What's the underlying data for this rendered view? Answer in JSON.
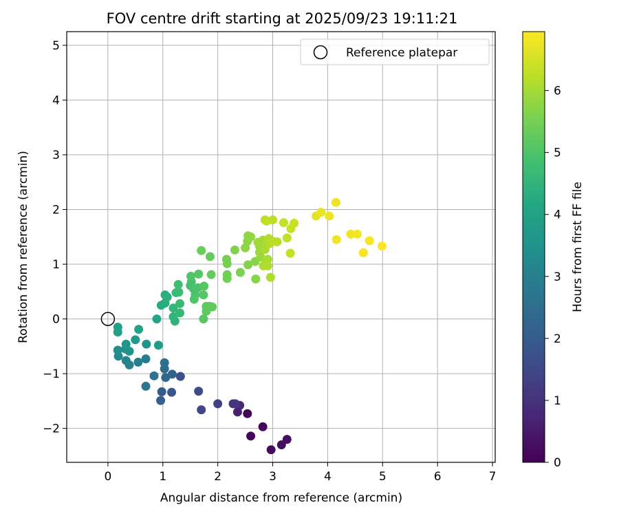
{
  "chart_data": {
    "type": "scatter",
    "title": "FOV centre drift starting at 2025/09/23 19:11:21",
    "xlabel": "Angular distance from reference (arcmin)",
    "ylabel": "Rotation from reference (arcmin)",
    "xlim": [
      -0.75,
      7.05
    ],
    "ylim": [
      -2.62,
      5.25
    ],
    "xticks": [
      0,
      1,
      2,
      3,
      4,
      5,
      6,
      7
    ],
    "yticks": [
      -2,
      -1,
      0,
      1,
      2,
      3,
      4,
      5
    ],
    "xtick_labels": [
      "0",
      "1",
      "2",
      "3",
      "4",
      "5",
      "6",
      "7"
    ],
    "ytick_labels": [
      "−2",
      "−1",
      "0",
      "1",
      "2",
      "3",
      "4",
      "5"
    ],
    "grid": true,
    "legend": {
      "label": "Reference platepar",
      "position": "top-right"
    },
    "reference_point": {
      "x": 0,
      "y": 0
    },
    "colorbar": {
      "label": "Hours from first FF file",
      "colormap": "viridis",
      "range": [
        0,
        6.95
      ],
      "ticks": [
        0,
        1,
        2,
        3,
        4,
        5,
        6
      ],
      "tick_labels": [
        "0",
        "1",
        "2",
        "3",
        "4",
        "5",
        "6"
      ]
    },
    "points": [
      [
        2.54,
        -1.73,
        0.05
      ],
      [
        2.6,
        -2.14,
        0.1
      ],
      [
        2.82,
        -1.97,
        0.15
      ],
      [
        2.97,
        -2.39,
        0.2
      ],
      [
        3.16,
        -2.3,
        0.25
      ],
      [
        3.26,
        -2.2,
        0.3
      ],
      [
        2.36,
        -1.7,
        0.6
      ],
      [
        2.4,
        -1.58,
        0.8
      ],
      [
        2.28,
        -1.55,
        1.0
      ],
      [
        2.32,
        -1.55,
        1.1
      ],
      [
        2.0,
        -1.55,
        1.3
      ],
      [
        1.7,
        -1.66,
        1.45
      ],
      [
        1.65,
        -1.32,
        1.6
      ],
      [
        1.32,
        -1.05,
        1.8
      ],
      [
        1.16,
        -1.34,
        1.9
      ],
      [
        0.98,
        -1.33,
        2.0
      ],
      [
        0.96,
        -1.49,
        2.1
      ],
      [
        1.17,
        -1.01,
        2.2
      ],
      [
        1.05,
        -1.07,
        2.3
      ],
      [
        1.03,
        -0.91,
        2.4
      ],
      [
        1.03,
        -0.8,
        2.5
      ],
      [
        0.84,
        -1.04,
        2.6
      ],
      [
        0.69,
        -1.23,
        2.75
      ],
      [
        0.69,
        -0.73,
        2.85
      ],
      [
        0.55,
        -0.79,
        2.95
      ],
      [
        0.39,
        -0.84,
        3.05
      ],
      [
        0.33,
        -0.76,
        3.15
      ],
      [
        0.19,
        -0.68,
        3.25
      ],
      [
        0.18,
        -0.57,
        3.35
      ],
      [
        0.32,
        -0.55,
        3.45
      ],
      [
        0.39,
        -0.59,
        3.55
      ],
      [
        0.33,
        -0.46,
        3.65
      ],
      [
        0.5,
        -0.38,
        3.75
      ],
      [
        0.18,
        -0.24,
        3.85
      ],
      [
        0.18,
        -0.15,
        3.95
      ],
      [
        0.7,
        -0.46,
        3.6
      ],
      [
        0.92,
        -0.48,
        3.8
      ],
      [
        0.56,
        -0.19,
        4.0
      ],
      [
        0.89,
        0.0,
        4.1
      ],
      [
        0.97,
        0.25,
        4.25
      ],
      [
        1.04,
        0.29,
        4.3
      ],
      [
        1.04,
        0.44,
        4.35
      ],
      [
        1.08,
        0.4,
        4.4
      ],
      [
        1.22,
        -0.04,
        4.45
      ],
      [
        1.19,
        0.04,
        4.5
      ],
      [
        1.19,
        0.2,
        4.55
      ],
      [
        1.31,
        0.11,
        4.6
      ],
      [
        1.31,
        0.28,
        4.65
      ],
      [
        1.24,
        0.48,
        4.7
      ],
      [
        1.29,
        0.49,
        4.75
      ],
      [
        1.28,
        0.63,
        4.8
      ],
      [
        1.5,
        0.61,
        4.85
      ],
      [
        1.52,
        0.68,
        4.9
      ],
      [
        1.56,
        0.55,
        4.95
      ],
      [
        1.59,
        0.44,
        5.0
      ],
      [
        1.57,
        0.36,
        5.05
      ],
      [
        1.64,
        0.57,
        5.0
      ],
      [
        1.51,
        0.78,
        5.05
      ],
      [
        1.65,
        0.82,
        5.1
      ],
      [
        1.74,
        0.44,
        5.1
      ],
      [
        1.75,
        0.6,
        5.15
      ],
      [
        1.74,
        0.0,
        5.15
      ],
      [
        1.79,
        0.14,
        5.2
      ],
      [
        1.79,
        0.23,
        5.2
      ],
      [
        1.85,
        0.23,
        5.25
      ],
      [
        1.9,
        0.22,
        5.25
      ],
      [
        1.88,
        0.81,
        5.3
      ],
      [
        1.86,
        1.14,
        5.3
      ],
      [
        1.7,
        1.25,
        5.35
      ],
      [
        2.17,
        0.74,
        5.45
      ],
      [
        2.17,
        0.81,
        5.45
      ],
      [
        2.17,
        1.01,
        5.5
      ],
      [
        2.16,
        1.09,
        5.5
      ],
      [
        2.41,
        0.85,
        5.55
      ],
      [
        2.31,
        1.26,
        5.6
      ],
      [
        2.55,
        0.99,
        5.65
      ],
      [
        2.69,
        0.73,
        5.7
      ],
      [
        2.68,
        1.05,
        5.7
      ],
      [
        2.5,
        1.3,
        5.75
      ],
      [
        2.54,
        1.42,
        5.75
      ],
      [
        2.55,
        1.52,
        5.8
      ],
      [
        2.6,
        1.5,
        5.8
      ],
      [
        2.78,
        1.13,
        5.9
      ],
      [
        2.76,
        1.22,
        5.9
      ],
      [
        2.76,
        1.33,
        5.95
      ],
      [
        2.73,
        1.4,
        5.95
      ],
      [
        2.82,
        1.44,
        6.0
      ],
      [
        2.84,
        1.36,
        6.0
      ],
      [
        2.86,
        1.27,
        6.05
      ],
      [
        2.91,
        1.09,
        6.05
      ],
      [
        2.87,
        1.02,
        6.05
      ],
      [
        2.83,
        0.97,
        6.1
      ],
      [
        2.91,
        0.97,
        6.1
      ],
      [
        2.96,
        0.76,
        6.1
      ],
      [
        2.93,
        1.47,
        6.15
      ],
      [
        2.95,
        1.38,
        6.15
      ],
      [
        3.0,
        1.42,
        6.2
      ],
      [
        3.08,
        1.41,
        6.2
      ],
      [
        3.0,
        1.81,
        6.25
      ],
      [
        2.86,
        1.81,
        6.25
      ],
      [
        2.89,
        1.79,
        6.25
      ],
      [
        3.2,
        1.76,
        6.3
      ],
      [
        3.26,
        1.48,
        6.3
      ],
      [
        3.32,
        1.2,
        6.35
      ],
      [
        3.33,
        1.65,
        6.35
      ],
      [
        3.39,
        1.75,
        6.4
      ],
      [
        3.79,
        1.88,
        6.65
      ],
      [
        3.88,
        1.95,
        6.7
      ],
      [
        4.03,
        1.88,
        6.75
      ],
      [
        4.15,
        2.13,
        6.75
      ],
      [
        4.16,
        1.45,
        6.8
      ],
      [
        4.42,
        1.55,
        6.8
      ],
      [
        4.54,
        1.55,
        6.85
      ],
      [
        4.65,
        1.21,
        6.85
      ],
      [
        4.76,
        1.43,
        6.9
      ],
      [
        4.99,
        1.33,
        6.95
      ]
    ]
  }
}
